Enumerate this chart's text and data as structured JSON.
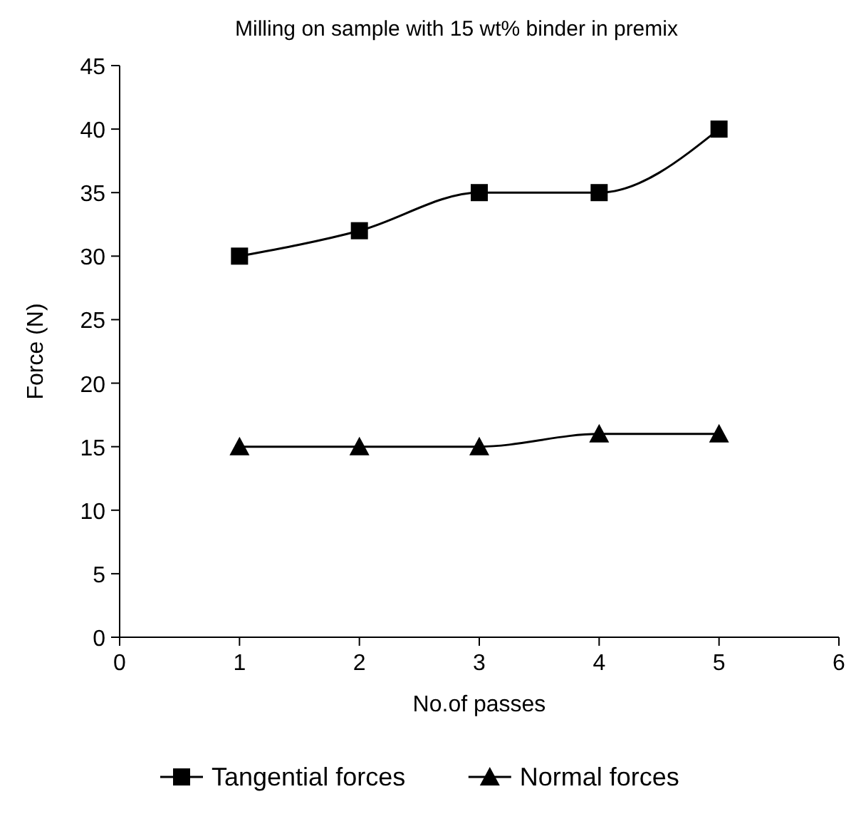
{
  "chart_data": {
    "type": "line",
    "title": "Milling on sample with 15 wt% binder in premix",
    "xlabel": "No.of passes",
    "ylabel": "Force (N)",
    "x": [
      1,
      2,
      3,
      4,
      5
    ],
    "xlim": [
      0,
      6
    ],
    "xticks": [
      0,
      1,
      2,
      3,
      4,
      5,
      6
    ],
    "ylim": [
      0,
      45
    ],
    "yticks": [
      0,
      5,
      10,
      15,
      20,
      25,
      30,
      35,
      40,
      45
    ],
    "series": [
      {
        "name": "Tangential forces",
        "color": "#000000",
        "values": [
          30,
          32,
          35,
          35,
          40
        ],
        "marker": "square"
      },
      {
        "name": "Normal forces",
        "color": "#000000",
        "values": [
          15,
          15,
          15,
          16,
          16
        ],
        "marker": "triangle"
      }
    ],
    "legend": "bottom",
    "grid": false,
    "line_style": "solid"
  }
}
